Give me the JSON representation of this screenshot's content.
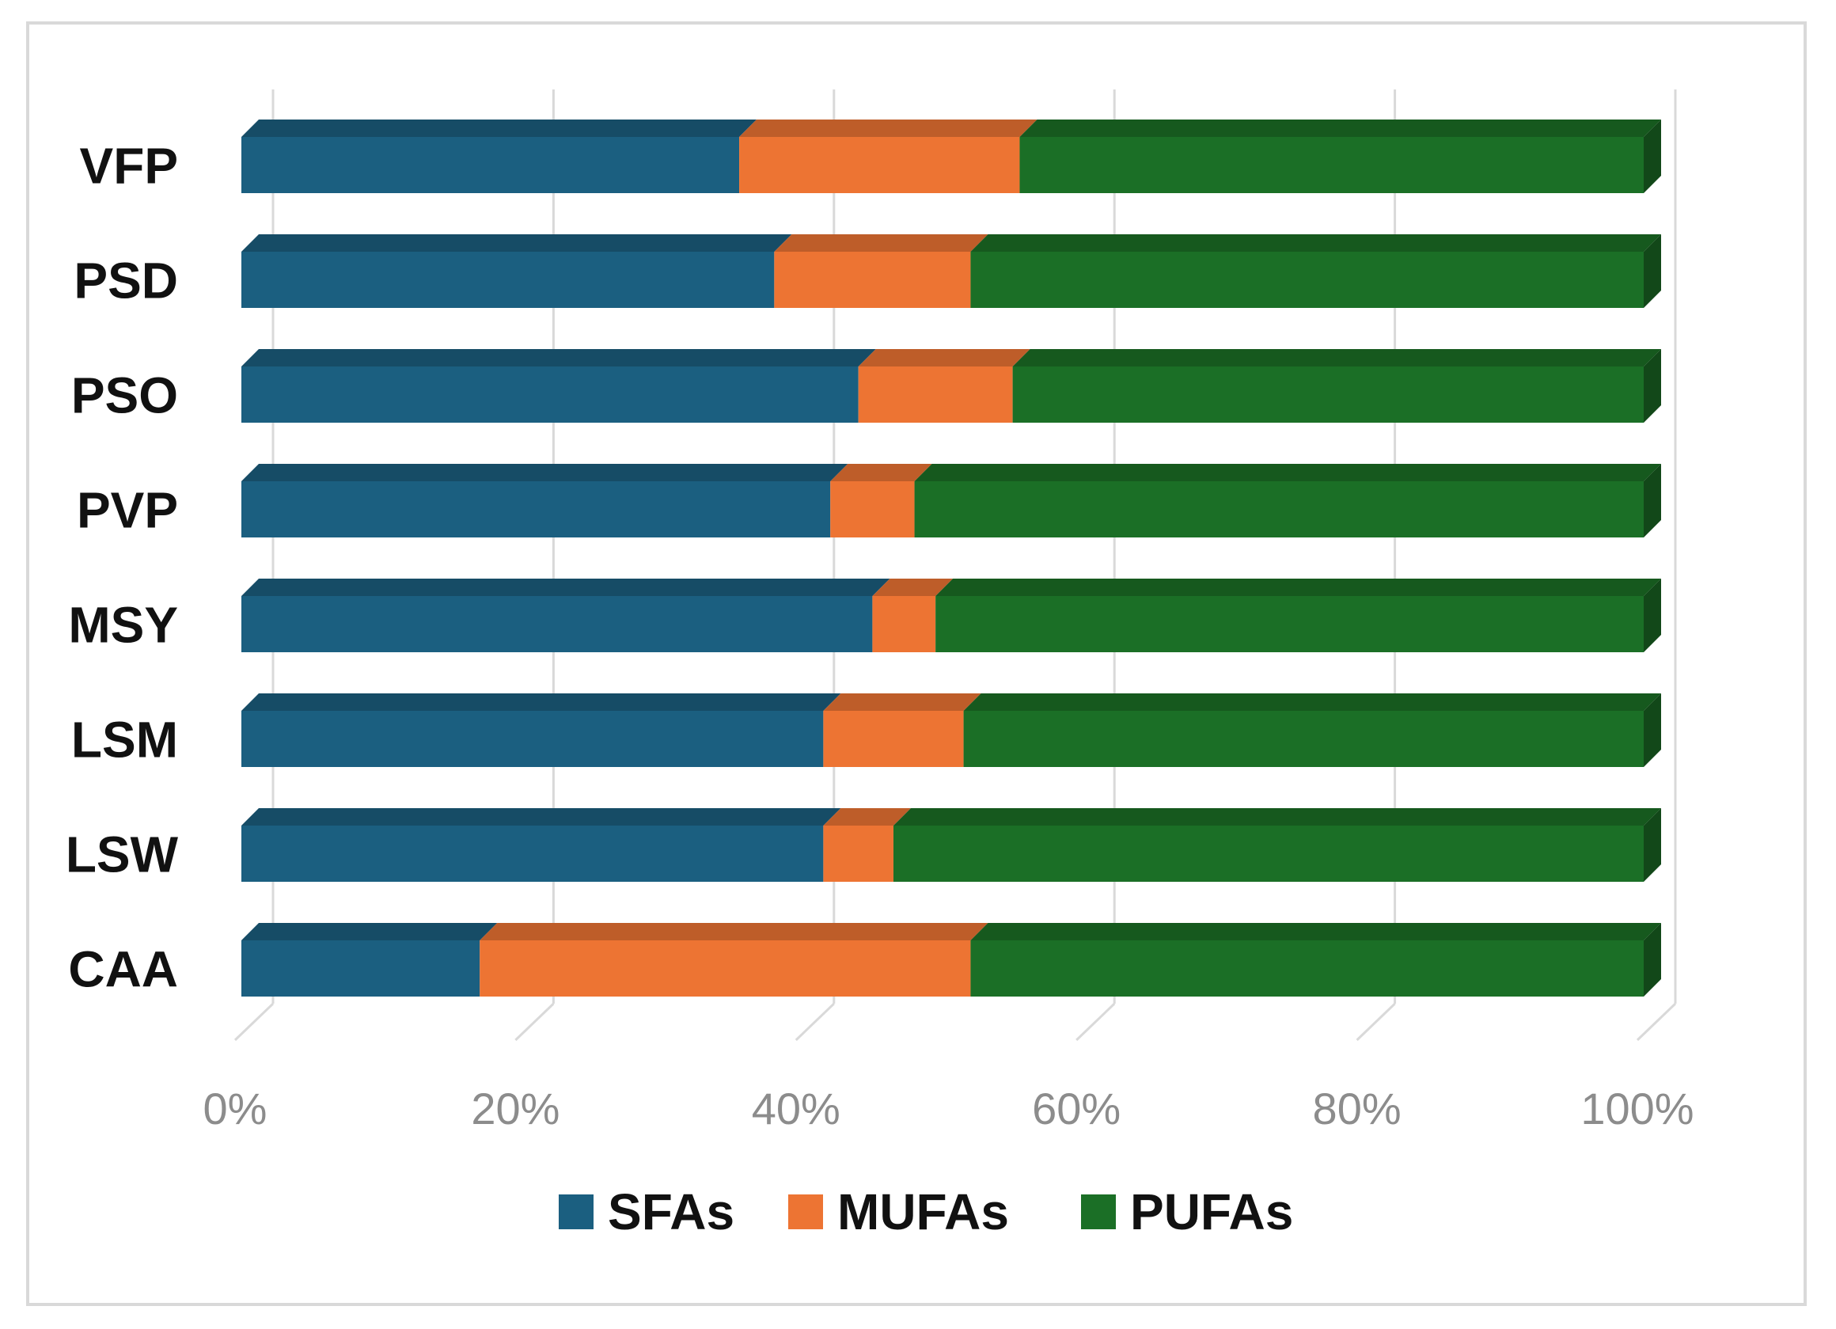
{
  "chart_data": {
    "type": "bar",
    "orientation": "horizontal",
    "stacked": "percent",
    "style": "3d",
    "title": "",
    "xlabel": "",
    "ylabel": "",
    "xlim": [
      0,
      100
    ],
    "x_ticks": [
      "0%",
      "20%",
      "40%",
      "60%",
      "80%",
      "100%"
    ],
    "grid": true,
    "legend_position": "bottom",
    "categories": [
      "VFP",
      "PSD",
      "PSO",
      "PVP",
      "MSY",
      "LSM",
      "LSW",
      "CAA"
    ],
    "series": [
      {
        "name": "SFAs",
        "color": "#1b5f80",
        "values": [
          35.5,
          38,
          44,
          42,
          45,
          41.5,
          41.5,
          17
        ]
      },
      {
        "name": "MUFAs",
        "color": "#ed7433",
        "values": [
          20,
          14,
          11,
          6,
          4.5,
          10,
          5,
          35
        ]
      },
      {
        "name": "PUFAs",
        "color": "#1b6f26",
        "values": [
          44.5,
          48,
          45,
          52,
          50.5,
          48.5,
          53.5,
          48
        ]
      }
    ]
  }
}
